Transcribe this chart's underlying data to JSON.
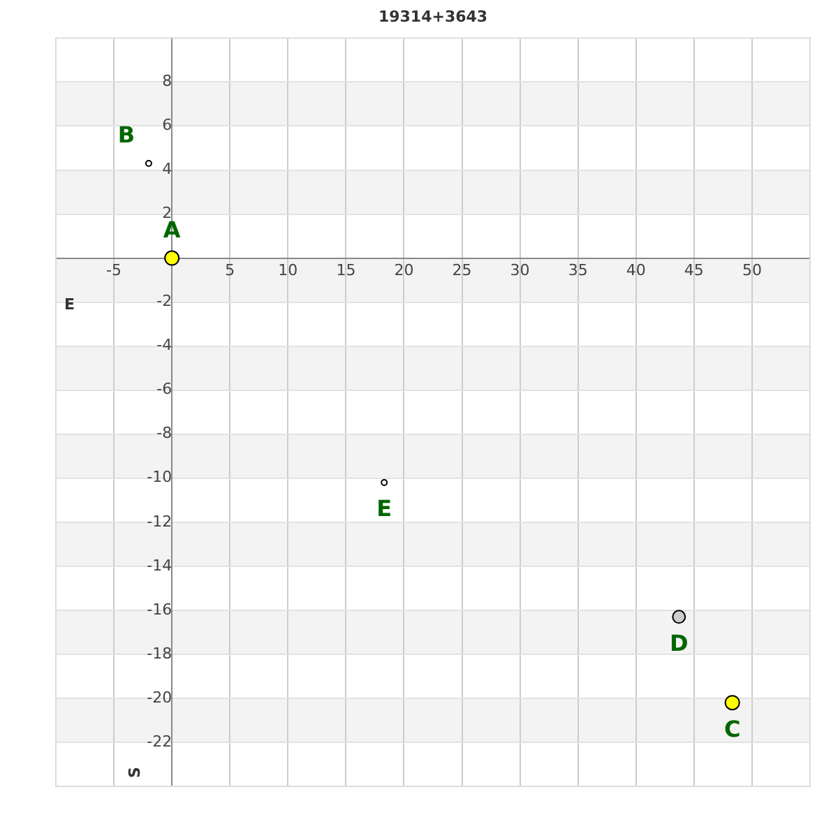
{
  "chart_data": {
    "type": "bubble",
    "title": "19314+3643",
    "xlabel": "E",
    "ylabel": "S",
    "x": [
      0,
      -2.0,
      48.3,
      43.7,
      18.3
    ],
    "values": [
      0,
      4.3,
      -20.2,
      -16.3,
      -10.2
    ],
    "sizes": [
      1,
      0.16,
      1,
      0.8,
      0.16
    ],
    "colors": [
      "#ffff00",
      "#ffffff",
      "#ffff00",
      "#cccccc",
      "#ffffff"
    ],
    "annotations": [
      {
        "text": "A",
        "x": 0,
        "y": 0
      },
      {
        "text": "B",
        "x": -2.0,
        "y": 4.3
      },
      {
        "text": "C",
        "x": 48.3,
        "y": -20.2
      },
      {
        "text": "D",
        "x": 43.7,
        "y": -16.3
      },
      {
        "text": "E",
        "x": 18.3,
        "y": -10.2
      }
    ],
    "xlim": [
      -10,
      55
    ],
    "ylim": [
      -24,
      10
    ],
    "xticks": [
      -5,
      5,
      10,
      15,
      20,
      25,
      30,
      35,
      40,
      45,
      50
    ],
    "yticks": [
      -22,
      -20,
      -18,
      -16,
      -14,
      -12,
      -10,
      -8,
      -6,
      -4,
      -2,
      2,
      4,
      6,
      8
    ],
    "bands": [
      {
        "axis": "y",
        "from": 6,
        "to": 8,
        "color": "#f3f3f3"
      },
      {
        "axis": "y",
        "from": 2,
        "to": 4,
        "color": "#f3f3f3"
      },
      {
        "axis": "y",
        "from": -2,
        "to": 0,
        "color": "#f3f3f3"
      },
      {
        "axis": "y",
        "from": -6,
        "to": -4,
        "color": "#f3f3f3"
      },
      {
        "axis": "y",
        "from": -10,
        "to": -8,
        "color": "#f3f3f3"
      },
      {
        "axis": "y",
        "from": -14,
        "to": -12,
        "color": "#f3f3f3"
      },
      {
        "axis": "y",
        "from": -18,
        "to": -16,
        "color": "#f3f3f3"
      },
      {
        "axis": "y",
        "from": -22,
        "to": -20,
        "color": "#f3f3f3"
      }
    ],
    "grid": true
  }
}
